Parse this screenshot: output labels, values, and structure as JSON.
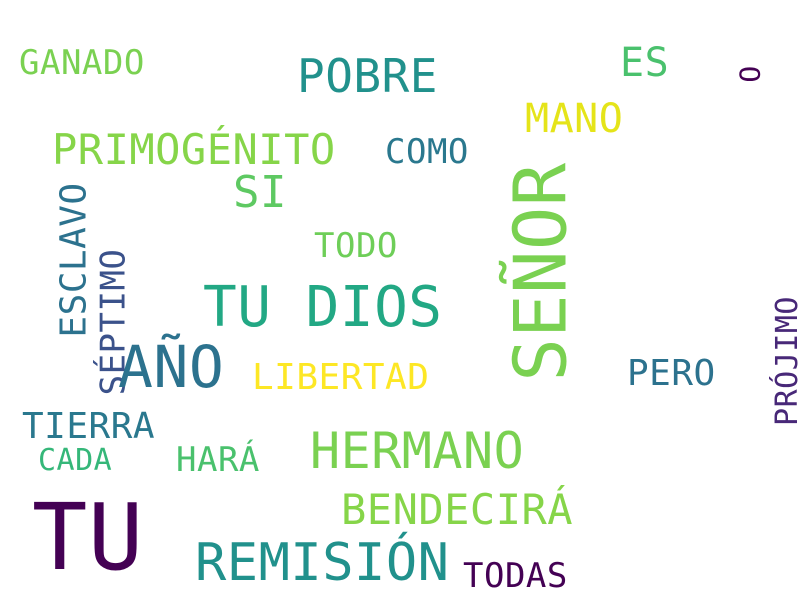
{
  "words": {
    "senor": {
      "text": "SEÑOR",
      "color": "#7ad151"
    },
    "tu_big": {
      "text": "TU",
      "color": "#440154"
    },
    "ano": {
      "text": "AÑO",
      "color": "#2c728e"
    },
    "tu_dios": {
      "text": "TU DIOS",
      "color": "#22a884"
    },
    "remision": {
      "text": "REMISIÓN",
      "color": "#21918c"
    },
    "hermano": {
      "text": "HERMANO",
      "color": "#7ad151"
    },
    "pobre": {
      "text": "POBRE",
      "color": "#21918c"
    },
    "primogenito": {
      "text": "PRIMOGÉNITO",
      "color": "#86d549"
    },
    "bendecira": {
      "text": "BENDECIRÁ",
      "color": "#86d549"
    },
    "esclavo": {
      "text": "ESCLAVO",
      "color": "#2c728e"
    },
    "septimo": {
      "text": "SÉPTIMO",
      "color": "#3b528b"
    },
    "libertad": {
      "text": "LIBERTAD",
      "color": "#fde725"
    },
    "mano": {
      "text": "MANO",
      "color": "#e5e419"
    },
    "si": {
      "text": "SI",
      "color": "#5ec962"
    },
    "proximo": {
      "text": "PRÓJIMO",
      "color": "#482878"
    },
    "tierra": {
      "text": "TIERRA",
      "color": "#2a788e"
    },
    "ganado": {
      "text": "GANADO",
      "color": "#7ad151"
    },
    "es": {
      "text": "ES",
      "color": "#4ac16d"
    },
    "como": {
      "text": "COMO",
      "color": "#2a788e"
    },
    "todo": {
      "text": "TODO",
      "color": "#6ece58"
    },
    "pero": {
      "text": "PERO",
      "color": "#2c728e"
    },
    "hara": {
      "text": "HARÁ",
      "color": "#4ac16d"
    },
    "todas": {
      "text": "TODAS",
      "color": "#440154"
    },
    "cada": {
      "text": "CADA",
      "color": "#35b779"
    },
    "o": {
      "text": "O",
      "color": "#440154"
    }
  }
}
